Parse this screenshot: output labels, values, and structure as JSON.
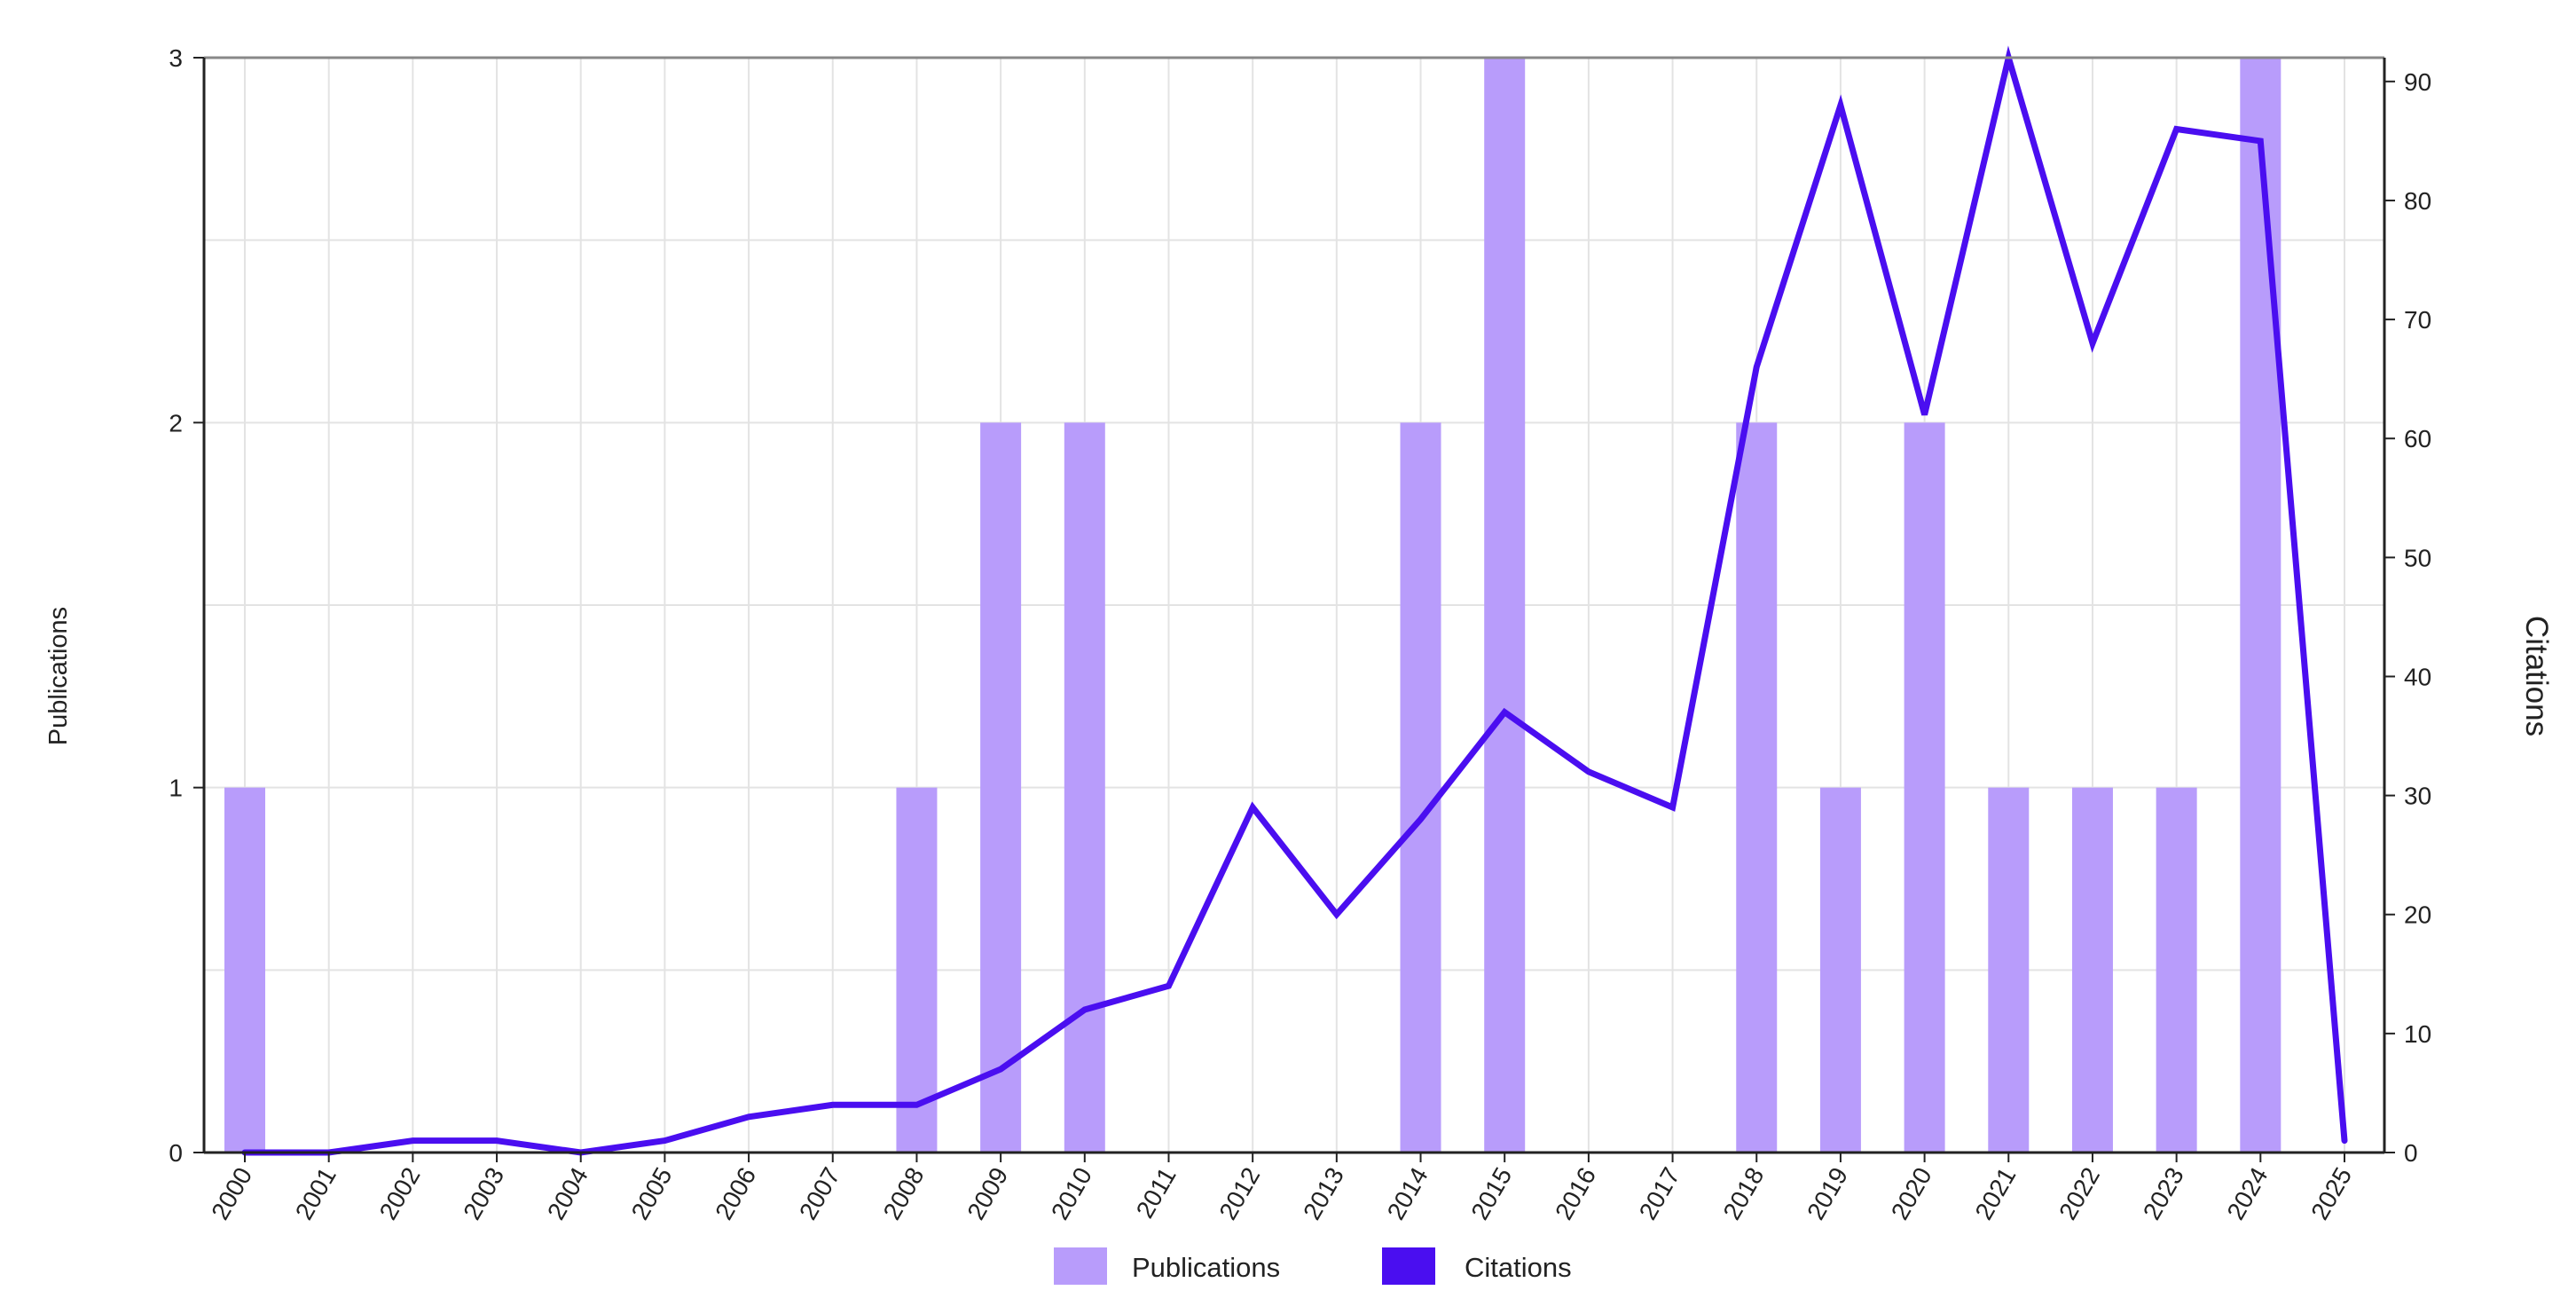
{
  "chart_data": {
    "type": "bar",
    "categories": [
      "2000",
      "2001",
      "2002",
      "2003",
      "2004",
      "2005",
      "2006",
      "2007",
      "2008",
      "2009",
      "2010",
      "2011",
      "2012",
      "2013",
      "2014",
      "2015",
      "2016",
      "2017",
      "2018",
      "2019",
      "2020",
      "2021",
      "2022",
      "2023",
      "2024",
      "2025"
    ],
    "series": [
      {
        "name": "Publications",
        "type": "bar",
        "axis": "left",
        "color": "#b89cfb",
        "values": [
          1,
          0,
          0,
          0,
          0,
          0,
          0,
          0,
          1,
          2,
          2,
          0,
          0,
          0,
          2,
          3,
          0,
          0,
          2,
          1,
          2,
          1,
          1,
          1,
          3,
          0
        ]
      },
      {
        "name": "Citations",
        "type": "line",
        "axis": "right",
        "color": "#4a0ef0",
        "values": [
          0,
          0,
          1,
          1,
          0,
          1,
          3,
          4,
          4,
          7,
          12,
          14,
          29,
          20,
          28,
          37,
          32,
          29,
          66,
          88,
          62,
          92,
          68,
          86,
          85,
          1
        ]
      }
    ],
    "ylabel": "Publications",
    "ylabel_right": "Citations",
    "ylim": [
      0,
      3
    ],
    "ylim_right": [
      0,
      92
    ],
    "yticks_left": [
      0,
      1,
      2,
      3
    ],
    "yticks_right": [
      0,
      10,
      20,
      30,
      40,
      50,
      60,
      70,
      80,
      90
    ],
    "grid": true,
    "legend_position": "bottom"
  }
}
